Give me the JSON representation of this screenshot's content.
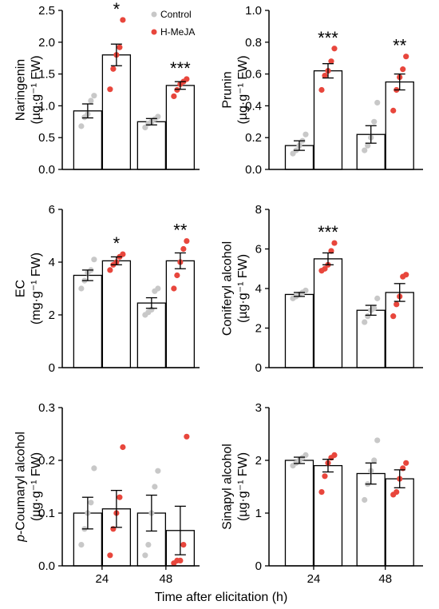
{
  "legend": [
    {
      "label": "Control",
      "color": "#c8c8c8"
    },
    {
      "label": "H-MeJA",
      "color": "#e8463c"
    }
  ],
  "xlabel": "Time after elicitation (h)",
  "chart_data": [
    {
      "type": "bar",
      "ylabel_line1": "Naringenin",
      "ylabel_line2": "(µg·g⁻¹ FW)",
      "categories": [
        "24",
        "48"
      ],
      "ylim": [
        0,
        2.5
      ],
      "yticks": [
        0,
        0.5,
        1.0,
        1.5,
        2.0,
        2.5
      ],
      "ytick_labels": [
        "0.0",
        "0.5",
        "1.0",
        "1.5",
        "2.0",
        "2.5"
      ],
      "show_xticks": false,
      "series": [
        {
          "name": "Control",
          "values": [
            0.92,
            0.75
          ],
          "errors": [
            0.11,
            0.05
          ],
          "points": [
            [
              0.68,
              0.82,
              0.87,
              1.08,
              1.16
            ],
            [
              0.66,
              0.72,
              0.75,
              0.79,
              0.83
            ]
          ]
        },
        {
          "name": "H-MeJA",
          "values": [
            1.8,
            1.32
          ],
          "errors": [
            0.17,
            0.06
          ],
          "points": [
            [
              1.26,
              1.58,
              1.8,
              1.92,
              2.35
            ],
            [
              1.15,
              1.25,
              1.34,
              1.38,
              1.42
            ]
          ]
        }
      ],
      "significance": [
        {
          "category": "24",
          "label": "*"
        },
        {
          "category": "48",
          "label": "***"
        }
      ]
    },
    {
      "type": "bar",
      "ylabel_line1": "Prunin",
      "ylabel_line2": "(µg·g⁻¹ FW)",
      "categories": [
        "24",
        "48"
      ],
      "ylim": [
        0,
        1.0
      ],
      "yticks": [
        0,
        0.2,
        0.4,
        0.6,
        0.8,
        1.0
      ],
      "ytick_labels": [
        "0.0",
        "0.2",
        "0.4",
        "0.6",
        "0.8",
        "1.0"
      ],
      "show_xticks": false,
      "series": [
        {
          "name": "Control",
          "values": [
            0.15,
            0.22
          ],
          "errors": [
            0.03,
            0.055
          ],
          "points": [
            [
              0.1,
              0.12,
              0.15,
              0.18,
              0.22
            ],
            [
              0.12,
              0.15,
              0.2,
              0.3,
              0.42
            ]
          ]
        },
        {
          "name": "H-MeJA",
          "values": [
            0.62,
            0.55
          ],
          "errors": [
            0.045,
            0.05
          ],
          "points": [
            [
              0.5,
              0.59,
              0.62,
              0.68,
              0.76
            ],
            [
              0.37,
              0.5,
              0.58,
              0.63,
              0.71
            ]
          ]
        }
      ],
      "significance": [
        {
          "category": "24",
          "label": "***"
        },
        {
          "category": "48",
          "label": "**"
        }
      ]
    },
    {
      "type": "bar",
      "ylabel_line1": "EC",
      "ylabel_line2": "(mg·g⁻¹ FW)",
      "categories": [
        "24",
        "48"
      ],
      "ylim": [
        0,
        6
      ],
      "yticks": [
        0,
        2,
        4,
        6
      ],
      "ytick_labels": [
        "0",
        "2",
        "4",
        "6"
      ],
      "show_xticks": false,
      "series": [
        {
          "name": "Control",
          "values": [
            3.5,
            2.45
          ],
          "errors": [
            0.2,
            0.2
          ],
          "points": [
            [
              3.0,
              3.3,
              3.6,
              3.7,
              4.1
            ],
            [
              2.0,
              2.1,
              2.2,
              2.9,
              3.0
            ]
          ]
        },
        {
          "name": "H-MeJA",
          "values": [
            4.05,
            4.05
          ],
          "errors": [
            0.15,
            0.3
          ],
          "points": [
            [
              3.7,
              3.9,
              4.0,
              4.2,
              4.3
            ],
            [
              3.0,
              3.5,
              4.0,
              4.5,
              4.8
            ]
          ]
        }
      ],
      "significance": [
        {
          "category": "24",
          "label": "*"
        },
        {
          "category": "48",
          "label": "**"
        }
      ]
    },
    {
      "type": "bar",
      "ylabel_line1": "Coniferyl alcohol",
      "ylabel_line2": "(µg·g⁻¹ FW)",
      "categories": [
        "24",
        "48"
      ],
      "ylim": [
        0,
        8
      ],
      "yticks": [
        0,
        2,
        4,
        6,
        8
      ],
      "ytick_labels": [
        "0",
        "2",
        "4",
        "6",
        "8"
      ],
      "show_xticks": false,
      "series": [
        {
          "name": "Control",
          "values": [
            3.7,
            2.9
          ],
          "errors": [
            0.1,
            0.25
          ],
          "points": [
            [
              3.5,
              3.6,
              3.7,
              3.8,
              3.9
            ],
            [
              2.3,
              2.6,
              2.9,
              3.0,
              3.5
            ]
          ]
        },
        {
          "name": "H-MeJA",
          "values": [
            5.5,
            3.8
          ],
          "errors": [
            0.3,
            0.45
          ],
          "points": [
            [
              4.9,
              5.0,
              5.2,
              5.9,
              6.3
            ],
            [
              2.6,
              3.2,
              3.6,
              4.6,
              4.7
            ]
          ]
        }
      ],
      "significance": [
        {
          "category": "24",
          "label": "***"
        }
      ]
    },
    {
      "type": "bar",
      "ylabel_line1": "p-Coumaryl alcohol",
      "ylabel_line2": "(µg·g⁻¹ FW)",
      "categories": [
        "24",
        "48"
      ],
      "ylim": [
        0,
        0.3
      ],
      "yticks": [
        0,
        0.1,
        0.2,
        0.3
      ],
      "ytick_labels": [
        "0.0",
        "0.1",
        "0.2",
        "0.3"
      ],
      "show_xticks": true,
      "series": [
        {
          "name": "Control",
          "values": [
            0.1,
            0.1
          ],
          "errors": [
            0.03,
            0.034
          ],
          "points": [
            [
              0.04,
              0.07,
              0.1,
              0.12,
              0.185
            ],
            [
              0.02,
              0.04,
              0.1,
              0.15,
              0.18
            ]
          ]
        },
        {
          "name": "H-MeJA",
          "values": [
            0.108,
            0.067
          ],
          "errors": [
            0.035,
            0.046
          ],
          "points": [
            [
              0.02,
              0.07,
              0.1,
              0.13,
              0.225
            ],
            [
              0.005,
              0.01,
              0.01,
              0.04,
              0.245
            ]
          ]
        }
      ],
      "significance": []
    },
    {
      "type": "bar",
      "ylabel_line1": "Sinapyl alcohol",
      "ylabel_line2": "(µg·g⁻¹ FW)",
      "categories": [
        "24",
        "48"
      ],
      "ylim": [
        0,
        3
      ],
      "yticks": [
        0,
        1,
        2,
        3
      ],
      "ytick_labels": [
        "0",
        "1",
        "2",
        "3"
      ],
      "show_xticks": true,
      "series": [
        {
          "name": "Control",
          "values": [
            2.0,
            1.75
          ],
          "errors": [
            0.06,
            0.2
          ],
          "points": [
            [
              1.9,
              1.95,
              2.0,
              2.05,
              2.1
            ],
            [
              1.25,
              1.55,
              1.8,
              2.0,
              2.38
            ]
          ]
        },
        {
          "name": "H-MeJA",
          "values": [
            1.9,
            1.65
          ],
          "errors": [
            0.12,
            0.17
          ],
          "points": [
            [
              1.4,
              1.7,
              1.95,
              2.05,
              2.1
            ],
            [
              1.35,
              1.4,
              1.65,
              1.85,
              1.95
            ]
          ]
        }
      ],
      "significance": []
    }
  ]
}
